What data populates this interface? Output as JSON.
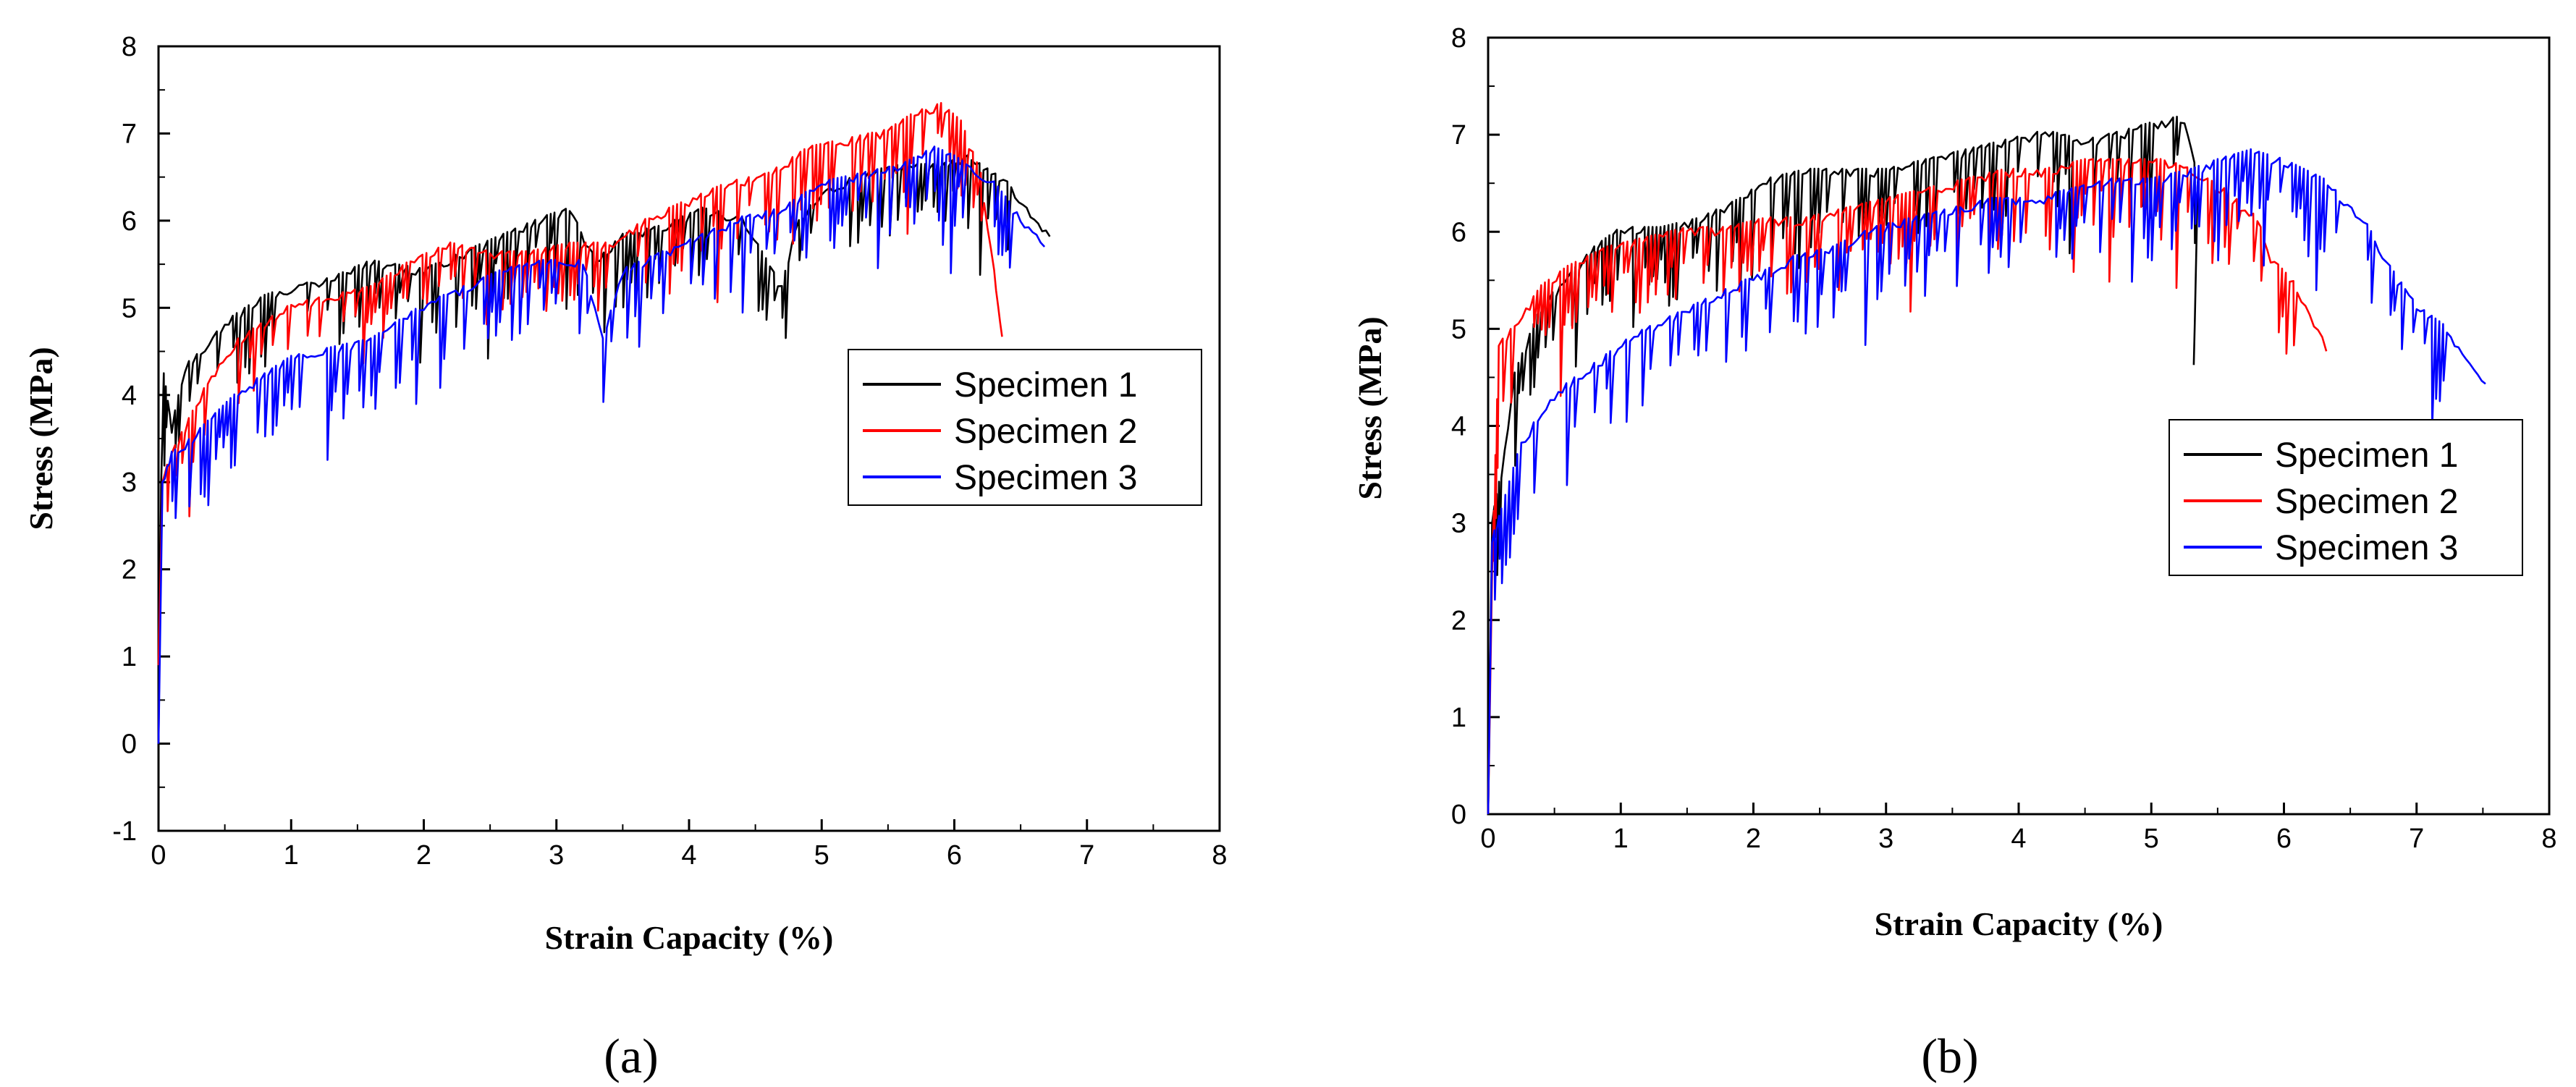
{
  "chart_data": [
    {
      "panel": "a",
      "panel_label": "(a)",
      "type": "line",
      "xlabel": "Strain Capacity (%)",
      "ylabel": "Stress (MPa)",
      "xlim": [
        0,
        8
      ],
      "ylim": [
        -1,
        8
      ],
      "xticks": [
        0,
        1,
        2,
        3,
        4,
        5,
        6,
        7,
        8
      ],
      "yticks": [
        -1,
        0,
        1,
        2,
        3,
        4,
        5,
        6,
        7,
        8
      ],
      "legend_position": "middle-right",
      "series": [
        {
          "name": "Specimen 1",
          "color": "#000000",
          "points": [
            [
              0,
              0
            ],
            [
              0.02,
              3.0
            ],
            [
              0.04,
              4.2
            ],
            [
              0.1,
              3.6
            ],
            [
              0.2,
              4.3
            ],
            [
              0.35,
              4.5
            ],
            [
              0.5,
              4.8
            ],
            [
              0.8,
              5.1
            ],
            [
              1.0,
              5.2
            ],
            [
              1.3,
              5.3
            ],
            [
              1.6,
              5.5
            ],
            [
              2.0,
              5.4
            ],
            [
              2.3,
              5.6
            ],
            [
              2.6,
              5.8
            ],
            [
              2.9,
              6.0
            ],
            [
              3.1,
              6.1
            ],
            [
              3.3,
              5.5
            ],
            [
              3.5,
              5.8
            ],
            [
              3.8,
              5.9
            ],
            [
              4.1,
              6.1
            ],
            [
              4.4,
              6.0
            ],
            [
              4.7,
              5.2
            ],
            [
              4.8,
              5.9
            ],
            [
              5.0,
              6.3
            ],
            [
              5.3,
              6.5
            ],
            [
              5.6,
              6.6
            ],
            [
              5.9,
              6.6
            ],
            [
              6.1,
              6.7
            ],
            [
              6.4,
              6.4
            ],
            [
              6.72,
              5.8
            ]
          ]
        },
        {
          "name": "Specimen 2",
          "color": "#ff0000",
          "points": [
            [
              0,
              0.9
            ],
            [
              0.03,
              3.0
            ],
            [
              0.1,
              3.3
            ],
            [
              0.2,
              3.6
            ],
            [
              0.4,
              4.2
            ],
            [
              0.6,
              4.6
            ],
            [
              0.8,
              4.8
            ],
            [
              1.0,
              5.0
            ],
            [
              1.3,
              5.1
            ],
            [
              1.6,
              5.2
            ],
            [
              1.9,
              5.5
            ],
            [
              2.2,
              5.7
            ],
            [
              2.5,
              5.6
            ],
            [
              2.8,
              5.6
            ],
            [
              3.1,
              5.7
            ],
            [
              3.4,
              5.7
            ],
            [
              3.7,
              6.0
            ],
            [
              4.0,
              6.2
            ],
            [
              4.3,
              6.4
            ],
            [
              4.6,
              6.5
            ],
            [
              4.9,
              6.8
            ],
            [
              5.2,
              6.9
            ],
            [
              5.5,
              7.0
            ],
            [
              5.7,
              7.2
            ],
            [
              5.9,
              7.3
            ],
            [
              6.05,
              7.1
            ],
            [
              6.2,
              6.5
            ],
            [
              6.3,
              5.4
            ],
            [
              6.36,
              4.7
            ]
          ]
        },
        {
          "name": "Specimen 3",
          "color": "#0000ff",
          "points": [
            [
              0,
              0
            ],
            [
              0.03,
              3.0
            ],
            [
              0.1,
              3.3
            ],
            [
              0.2,
              3.4
            ],
            [
              0.4,
              3.7
            ],
            [
              0.6,
              4.0
            ],
            [
              0.8,
              4.2
            ],
            [
              1.0,
              4.4
            ],
            [
              1.3,
              4.5
            ],
            [
              1.6,
              4.6
            ],
            [
              2.0,
              5.0
            ],
            [
              2.3,
              5.2
            ],
            [
              2.6,
              5.4
            ],
            [
              2.9,
              5.5
            ],
            [
              3.2,
              5.5
            ],
            [
              3.35,
              4.6
            ],
            [
              3.5,
              5.4
            ],
            [
              3.8,
              5.6
            ],
            [
              4.1,
              5.8
            ],
            [
              4.4,
              6.0
            ],
            [
              4.7,
              6.1
            ],
            [
              5.0,
              6.4
            ],
            [
              5.3,
              6.5
            ],
            [
              5.6,
              6.6
            ],
            [
              5.85,
              6.8
            ],
            [
              6.0,
              6.7
            ],
            [
              6.3,
              6.4
            ],
            [
              6.5,
              6.0
            ],
            [
              6.68,
              5.7
            ]
          ]
        }
      ]
    },
    {
      "panel": "b",
      "panel_label": "(b)",
      "type": "line",
      "xlabel": "Strain Capacity (%)",
      "ylabel": "Stress (MPa)",
      "xlim": [
        0,
        8
      ],
      "ylim": [
        0,
        8
      ],
      "xticks": [
        0,
        1,
        2,
        3,
        4,
        5,
        6,
        7,
        8
      ],
      "yticks": [
        0,
        1,
        2,
        3,
        4,
        5,
        6,
        7,
        8
      ],
      "legend_position": "middle-right",
      "series": [
        {
          "name": "Specimen 1",
          "color": "#000000",
          "points": [
            [
              0,
              0
            ],
            [
              0.03,
              3.0
            ],
            [
              0.1,
              3.5
            ],
            [
              0.2,
              4.5
            ],
            [
              0.4,
              5.2
            ],
            [
              0.6,
              5.5
            ],
            [
              0.8,
              5.8
            ],
            [
              1.0,
              6.0
            ],
            [
              1.3,
              6.0
            ],
            [
              1.6,
              6.1
            ],
            [
              1.9,
              6.3
            ],
            [
              2.1,
              6.5
            ],
            [
              2.4,
              6.6
            ],
            [
              2.7,
              6.6
            ],
            [
              3.0,
              6.6
            ],
            [
              3.3,
              6.7
            ],
            [
              3.6,
              6.8
            ],
            [
              3.9,
              6.9
            ],
            [
              4.2,
              7.0
            ],
            [
              4.5,
              6.9
            ],
            [
              4.8,
              7.0
            ],
            [
              5.05,
              7.1
            ],
            [
              5.25,
              7.15
            ],
            [
              5.35,
              6.5
            ],
            [
              5.32,
              4.6
            ]
          ]
        },
        {
          "name": "Specimen 2",
          "color": "#ff0000",
          "points": [
            [
              0,
              0
            ],
            [
              0.03,
              2.5
            ],
            [
              0.08,
              4.8
            ],
            [
              0.2,
              5.0
            ],
            [
              0.4,
              5.4
            ],
            [
              0.6,
              5.6
            ],
            [
              0.9,
              5.8
            ],
            [
              1.2,
              5.9
            ],
            [
              1.5,
              6.0
            ],
            [
              1.8,
              6.0
            ],
            [
              2.1,
              6.1
            ],
            [
              2.4,
              6.1
            ],
            [
              2.7,
              6.2
            ],
            [
              3.0,
              6.3
            ],
            [
              3.3,
              6.4
            ],
            [
              3.6,
              6.5
            ],
            [
              3.9,
              6.6
            ],
            [
              4.2,
              6.6
            ],
            [
              4.5,
              6.7
            ],
            [
              4.8,
              6.7
            ],
            [
              5.1,
              6.7
            ],
            [
              5.3,
              6.6
            ],
            [
              5.55,
              6.4
            ],
            [
              5.8,
              6.1
            ],
            [
              5.9,
              5.7
            ],
            [
              6.1,
              5.4
            ],
            [
              6.32,
              4.8
            ]
          ]
        },
        {
          "name": "Specimen 3",
          "color": "#0000ff",
          "points": [
            [
              0,
              0
            ],
            [
              0.03,
              2.8
            ],
            [
              0.1,
              3.1
            ],
            [
              0.25,
              3.8
            ],
            [
              0.5,
              4.3
            ],
            [
              0.8,
              4.6
            ],
            [
              1.1,
              4.9
            ],
            [
              1.4,
              5.1
            ],
            [
              1.7,
              5.3
            ],
            [
              2.0,
              5.5
            ],
            [
              2.3,
              5.7
            ],
            [
              2.6,
              5.8
            ],
            [
              2.9,
              6.0
            ],
            [
              3.2,
              6.1
            ],
            [
              3.5,
              6.2
            ],
            [
              3.8,
              6.3
            ],
            [
              4.1,
              6.3
            ],
            [
              4.4,
              6.4
            ],
            [
              4.7,
              6.5
            ],
            [
              5.0,
              6.5
            ],
            [
              5.3,
              6.6
            ],
            [
              5.5,
              6.7
            ],
            [
              5.75,
              6.8
            ],
            [
              6.0,
              6.7
            ],
            [
              6.3,
              6.5
            ],
            [
              6.6,
              6.1
            ],
            [
              6.8,
              5.6
            ],
            [
              7.0,
              5.2
            ],
            [
              7.2,
              5.0
            ],
            [
              7.52,
              4.4
            ]
          ]
        }
      ]
    }
  ]
}
